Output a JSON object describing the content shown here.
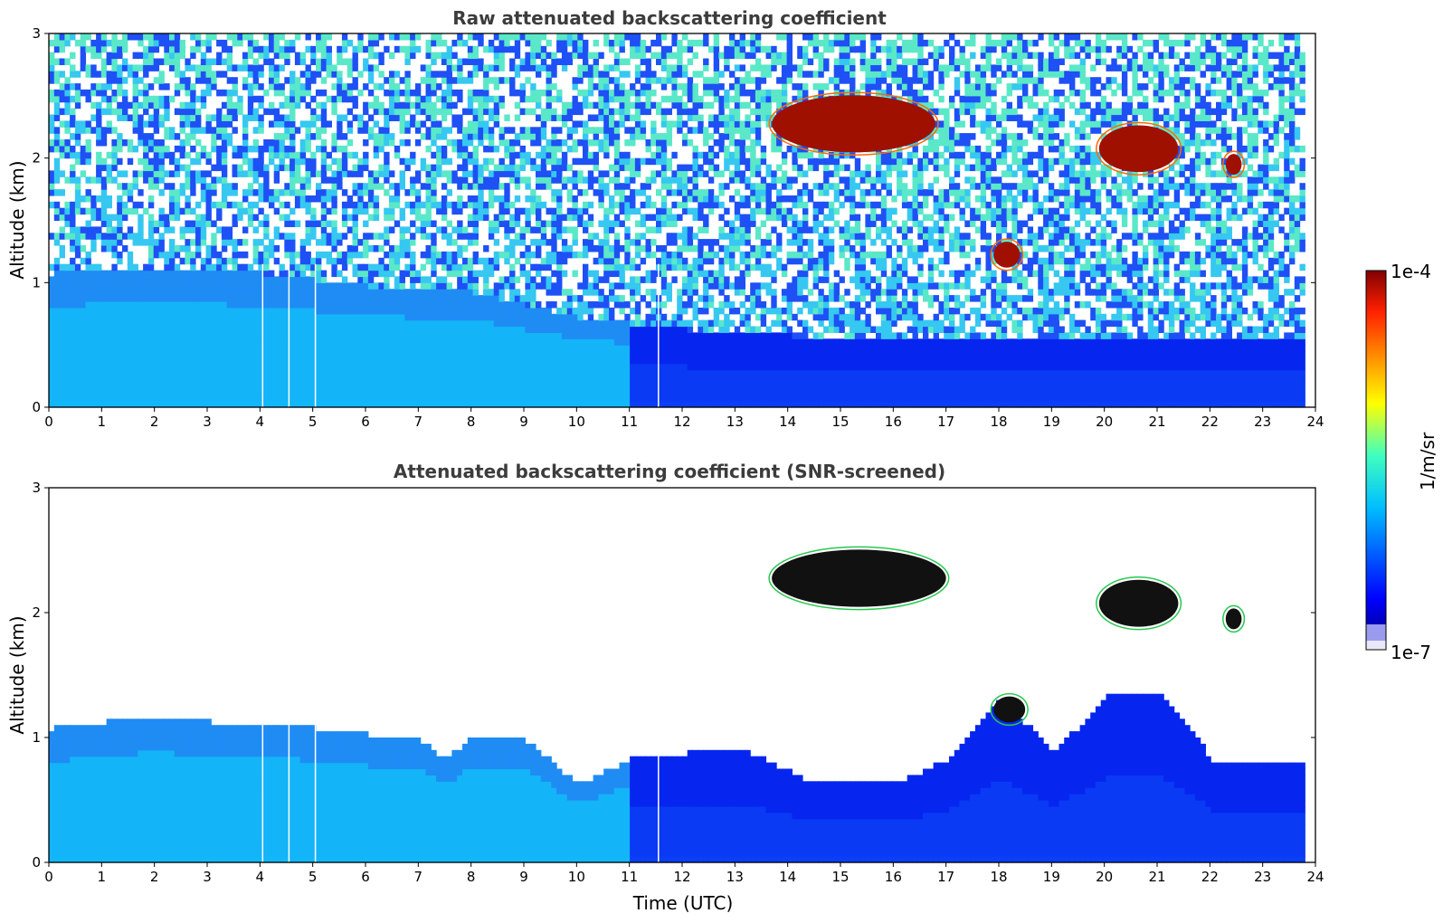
{
  "chart_data": [
    {
      "type": "heatmap",
      "title": "Raw attenuated backscattering coefficient",
      "xlabel": "",
      "ylabel": "Altitude (km)",
      "xlim": [
        0,
        24
      ],
      "ylim": [
        0,
        3
      ],
      "xticks": [
        "0",
        "1",
        "2",
        "3",
        "4",
        "5",
        "6",
        "7",
        "8",
        "9",
        "10",
        "11",
        "12",
        "13",
        "14",
        "15",
        "16",
        "17",
        "18",
        "19",
        "20",
        "21",
        "22",
        "23",
        "24"
      ],
      "yticks": [
        "0",
        "1",
        "2",
        "3"
      ],
      "data_end_time": 23.8,
      "boundary_layer_top_km": [
        [
          0,
          1.05
        ],
        [
          2,
          1.1
        ],
        [
          4,
          1.05
        ],
        [
          6,
          0.95
        ],
        [
          8,
          0.9
        ],
        [
          10,
          0.7
        ],
        [
          12,
          0.6
        ],
        [
          14,
          0.55
        ],
        [
          16,
          0.55
        ],
        [
          18,
          0.5
        ],
        [
          20,
          0.55
        ],
        [
          22,
          0.55
        ],
        [
          24,
          0.5
        ]
      ],
      "cloud_layers": [
        {
          "t_start": 13.7,
          "t_end": 16.8,
          "z_base": 2.0,
          "z_top": 2.55
        },
        {
          "t_start": 17.9,
          "t_end": 18.4,
          "z_base": 1.1,
          "z_top": 1.35
        },
        {
          "t_start": 19.9,
          "t_end": 21.4,
          "z_base": 1.85,
          "z_top": 2.3
        },
        {
          "t_start": 22.3,
          "t_end": 22.6,
          "z_base": 1.85,
          "z_top": 2.05
        }
      ],
      "missing_profiles_time": [
        4.05,
        4.55,
        5.05,
        11.55
      ],
      "noise": "heavy"
    },
    {
      "type": "heatmap",
      "title": "Attenuated backscattering coefficient (SNR-screened)",
      "xlabel": "Time (UTC)",
      "ylabel": "Altitude (km)",
      "xlim": [
        0,
        24
      ],
      "ylim": [
        0,
        3
      ],
      "xticks": [
        "0",
        "1",
        "2",
        "3",
        "4",
        "5",
        "6",
        "7",
        "8",
        "9",
        "10",
        "11",
        "12",
        "13",
        "14",
        "15",
        "16",
        "17",
        "18",
        "19",
        "20",
        "21",
        "22",
        "23",
        "24"
      ],
      "yticks": [
        "0",
        "1",
        "2",
        "3"
      ],
      "data_end_time": 23.8,
      "boundary_layer_top_km": [
        [
          0,
          1.05
        ],
        [
          1,
          1.1
        ],
        [
          2,
          1.15
        ],
        [
          3,
          1.1
        ],
        [
          4,
          1.1
        ],
        [
          5,
          1.05
        ],
        [
          6,
          1.0
        ],
        [
          7,
          0.95
        ],
        [
          7.5,
          0.8
        ],
        [
          8,
          1.0
        ],
        [
          9,
          0.95
        ],
        [
          10,
          0.6
        ],
        [
          11,
          0.8
        ],
        [
          12,
          0.85
        ],
        [
          13,
          0.9
        ],
        [
          14,
          0.7
        ],
        [
          14.5,
          0.6
        ],
        [
          15,
          0.65
        ],
        [
          16,
          0.6
        ],
        [
          17,
          0.8
        ],
        [
          18,
          1.3
        ],
        [
          19,
          0.85
        ],
        [
          20,
          1.3
        ],
        [
          21,
          1.35
        ],
        [
          22,
          0.8
        ],
        [
          23,
          0.8
        ],
        [
          24,
          0.75
        ]
      ],
      "cloud_layers": [
        {
          "t_start": 13.7,
          "t_end": 17.0,
          "z_base": 2.0,
          "z_top": 2.55
        },
        {
          "t_start": 17.9,
          "t_end": 18.5,
          "z_base": 1.1,
          "z_top": 1.35
        },
        {
          "t_start": 19.9,
          "t_end": 21.4,
          "z_base": 1.85,
          "z_top": 2.3
        },
        {
          "t_start": 22.3,
          "t_end": 22.6,
          "z_base": 1.85,
          "z_top": 2.05
        }
      ],
      "missing_profiles_time": [
        4.05,
        4.55,
        5.05,
        11.55
      ],
      "noise": "screened"
    }
  ],
  "colorbar": {
    "max_label": "1e-4",
    "min_label": "1e-7",
    "unit_label": "1/m/sr",
    "colormap": "jet",
    "under_color": "#e8e8f8",
    "saturated_color": "#000000"
  }
}
